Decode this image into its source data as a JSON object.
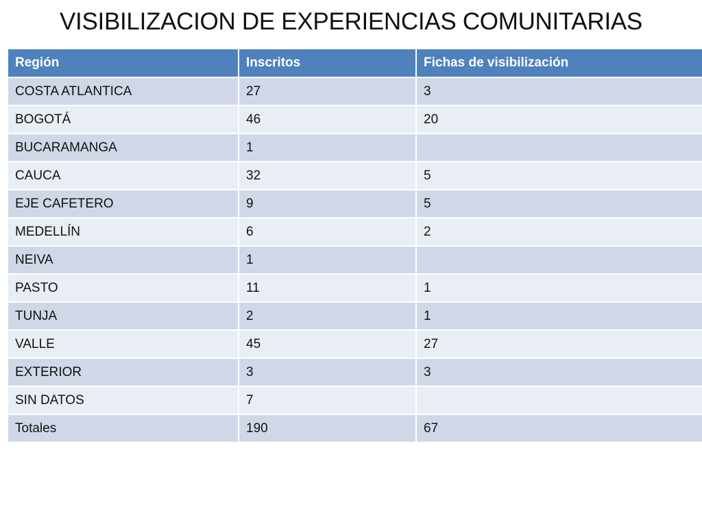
{
  "title": "VISIBILIZACION DE EXPERIENCIAS COMUNITARIAS",
  "colors": {
    "header_bg": "#4f81bd",
    "row_dark": "#d0d8e8",
    "row_light": "#e9edf4"
  },
  "table": {
    "headers": [
      "Región",
      "Inscritos",
      "Fichas de visibilización"
    ],
    "rows": [
      [
        "COSTA ATLANTICA",
        "27",
        "3"
      ],
      [
        "BOGOTÁ",
        "46",
        "20"
      ],
      [
        "BUCARAMANGA",
        "1",
        ""
      ],
      [
        "CAUCA",
        "32",
        "5"
      ],
      [
        "EJE CAFETERO",
        "9",
        "5"
      ],
      [
        "MEDELLÍN",
        "6",
        "2"
      ],
      [
        "NEIVA",
        "1",
        ""
      ],
      [
        "PASTO",
        "11",
        "1"
      ],
      [
        "TUNJA",
        "2",
        "1"
      ],
      [
        "VALLE",
        "45",
        "27"
      ],
      [
        "EXTERIOR",
        "3",
        "3"
      ],
      [
        "SIN DATOS",
        "7",
        ""
      ],
      [
        "Totales",
        "190",
        "67"
      ]
    ]
  }
}
